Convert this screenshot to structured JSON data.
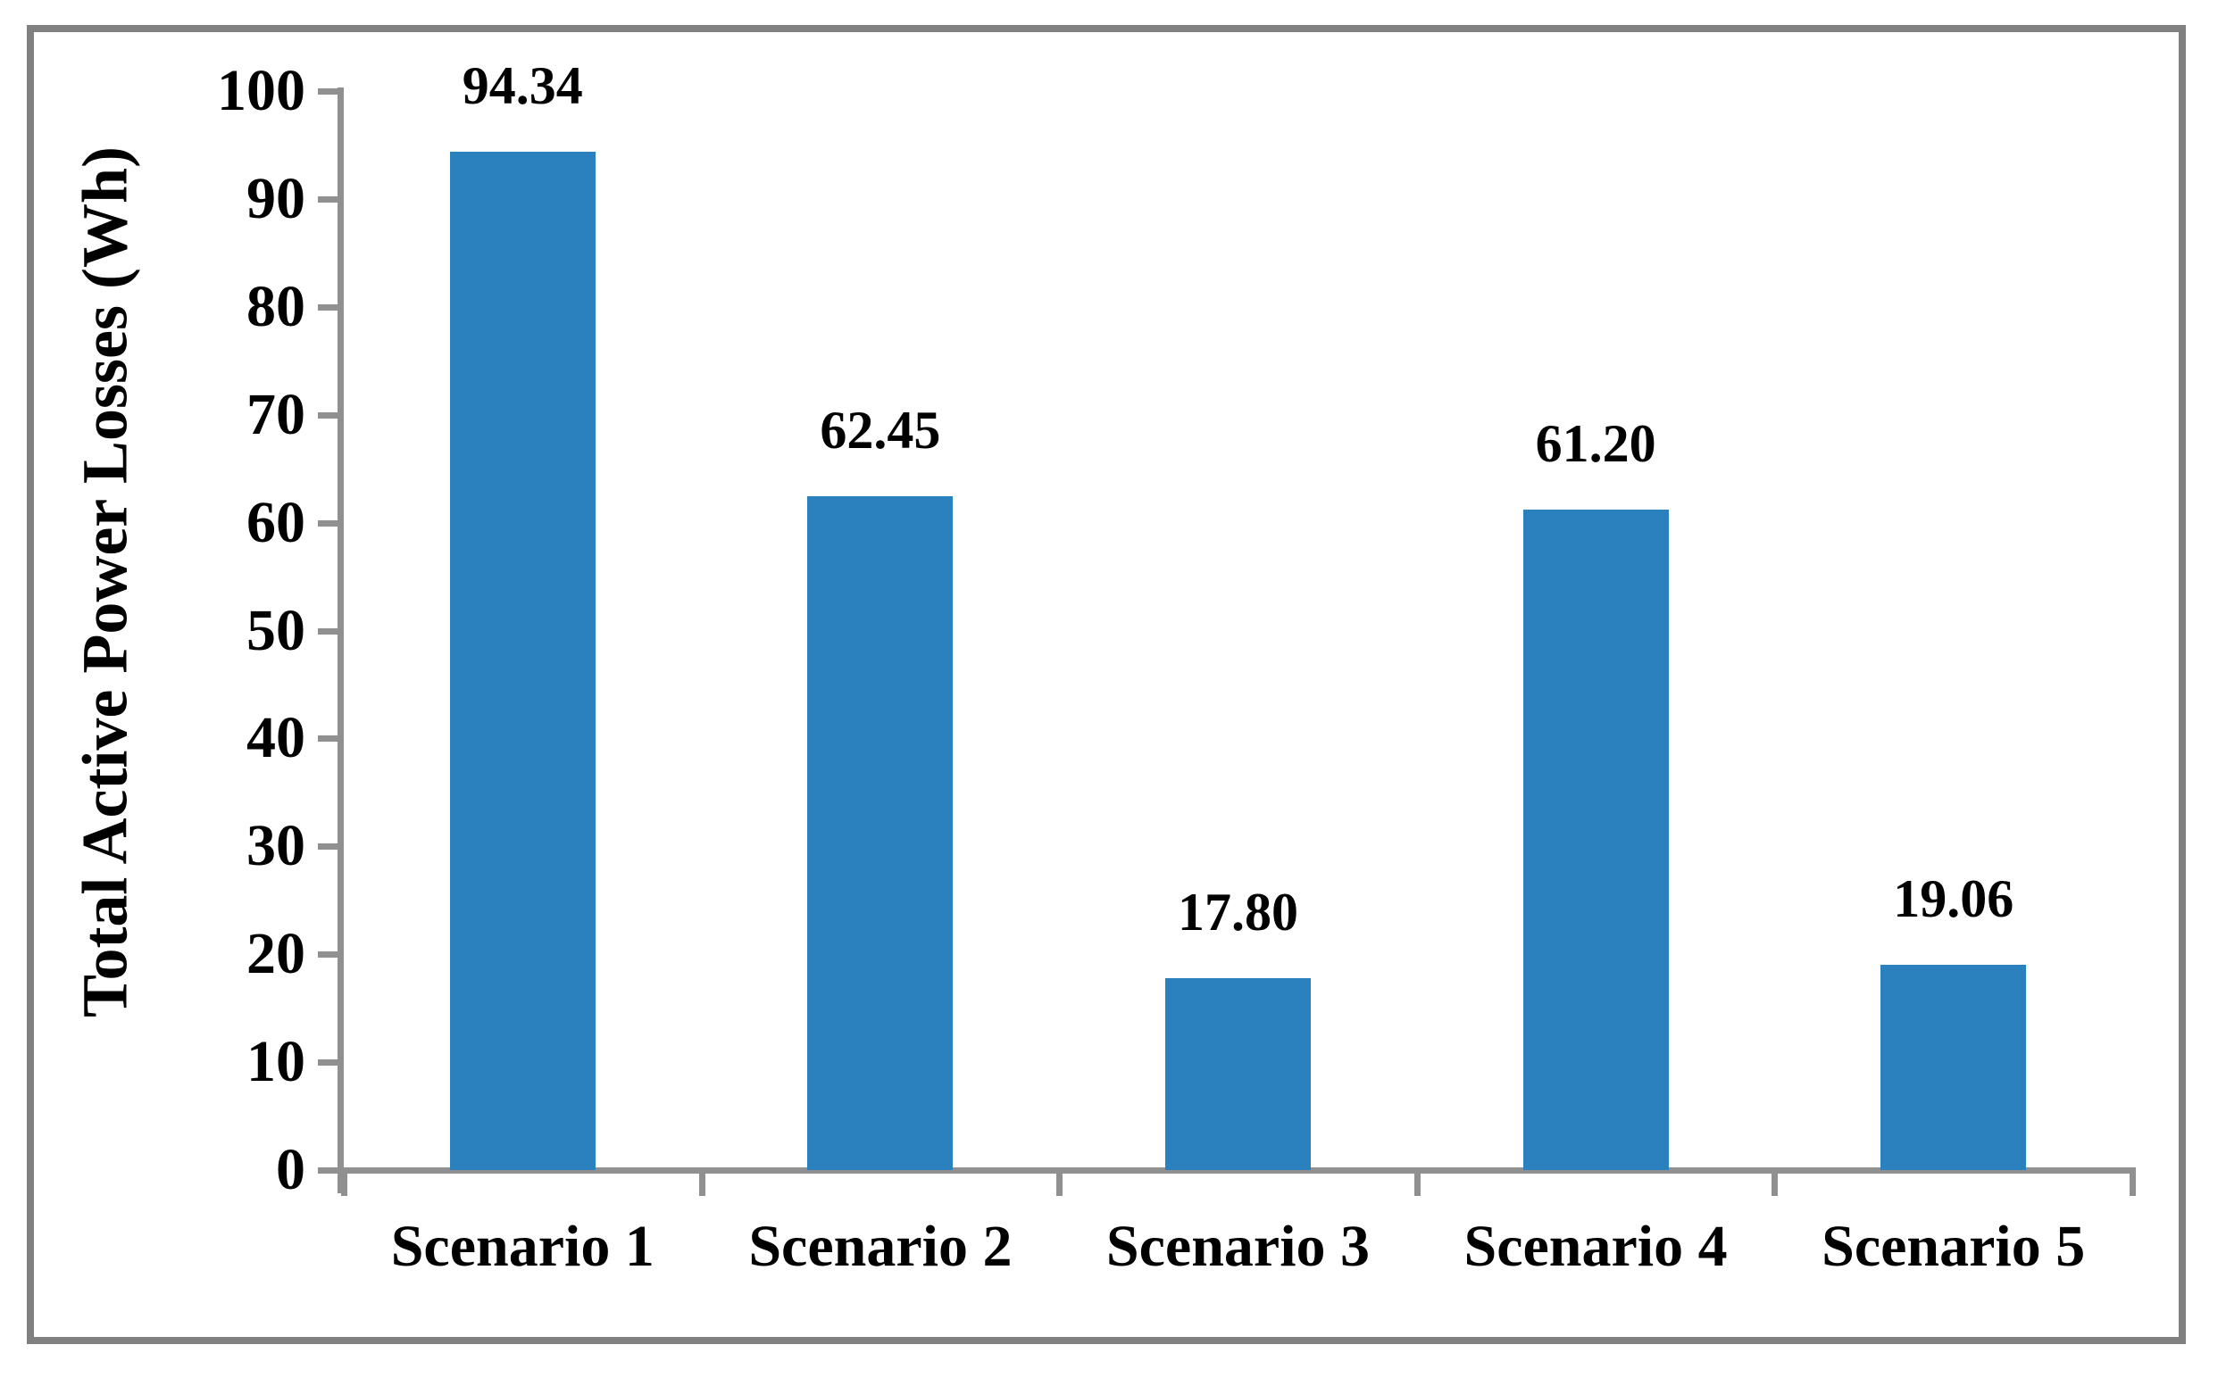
{
  "chart_data": {
    "type": "bar",
    "title": "",
    "categories": [
      "Scenario 1",
      "Scenario 2",
      "Scenario 3",
      "Scenario 4",
      "Scenario 5"
    ],
    "values": [
      94.34,
      62.45,
      17.8,
      61.2,
      19.06
    ],
    "value_labels": [
      "94.34",
      "62.45",
      "17.80",
      "61.20",
      "19.06"
    ],
    "xlabel": "",
    "ylabel": "Total Active Power Losses (Wh)",
    "ylim": [
      0,
      100
    ],
    "y_ticks": [
      0,
      10,
      20,
      30,
      40,
      50,
      60,
      70,
      80,
      90,
      100
    ],
    "grid": false,
    "legend_position": "none",
    "bar_color": "#2B81BE",
    "axis_color": "#909090",
    "text_color": "#000000",
    "frame_border_color": "#808080",
    "background_color": "#FFFFFF"
  }
}
